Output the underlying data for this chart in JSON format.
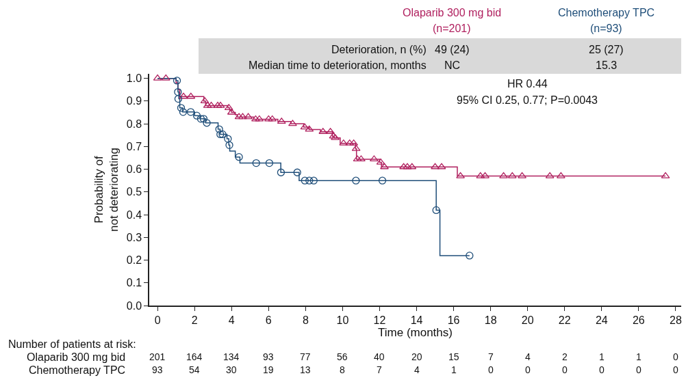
{
  "chart_data": {
    "type": "step",
    "xlabel": "Time (months)",
    "ylabel": "Probability of\nnot deteriorating",
    "xlim": [
      -0.45,
      28.3
    ],
    "ylim": [
      0,
      1.02
    ],
    "xticks": [
      0,
      2,
      4,
      6,
      8,
      10,
      12,
      14,
      16,
      18,
      20,
      22,
      24,
      26,
      28
    ],
    "yticks": [
      {
        "value": 0,
        "label": "0.0"
      },
      0.1,
      0.2,
      0.3,
      0.4,
      0.5,
      0.6,
      0.7,
      0.8,
      0.9,
      {
        "value": 1,
        "label": "1.0"
      }
    ],
    "grid": false,
    "legend": false,
    "series": [
      {
        "name": "Olaparib 300 mg bid",
        "color": "#b0215f",
        "marker": "none",
        "x": [
          0,
          1.0,
          1.1,
          1.2,
          2.5,
          2.6,
          3.8,
          3.9,
          4.0,
          4.2,
          4.3,
          5.2,
          6.5,
          7.2,
          7.9,
          8.2,
          8.8,
          9.45,
          9.55,
          9.87,
          10.7,
          10.75,
          12.0,
          12.1,
          16.2,
          27.45
        ],
        "values": [
          1.0,
          0.98,
          0.95,
          0.92,
          0.9,
          0.88,
          0.87,
          0.86,
          0.85,
          0.84,
          0.83,
          0.82,
          0.81,
          0.8,
          0.785,
          0.775,
          0.765,
          0.745,
          0.738,
          0.714,
          0.69,
          0.644,
          0.63,
          0.61,
          0.57,
          0.57
        ]
      },
      {
        "name": "Chemotherapy TPC",
        "color": "#1f4e79",
        "marker": "none",
        "x": [
          0,
          1.0,
          1.1,
          1.15,
          1.2,
          1.35,
          2.0,
          2.3,
          2.6,
          3.27,
          3.38,
          3.75,
          3.85,
          3.9,
          4.2,
          4.45,
          6.66,
          7.65,
          15.06,
          15.26,
          16.86
        ],
        "values": [
          1.0,
          0.99,
          0.94,
          0.91,
          0.87,
          0.852,
          0.836,
          0.822,
          0.804,
          0.776,
          0.754,
          0.734,
          0.706,
          0.68,
          0.654,
          0.627,
          0.586,
          0.55,
          0.42,
          0.22,
          0.22
        ]
      },
      {
        "type": "scatter",
        "color": "#b0215f",
        "marker": "triangle",
        "x": [
          0,
          0.45,
          1.4,
          1.8,
          2.55,
          2.7,
          2.9,
          3.25,
          3.4,
          3.85,
          4.0,
          4.4,
          4.6,
          4.9,
          5.3,
          5.5,
          6.0,
          6.2,
          6.7,
          7.3,
          7.95,
          8.2,
          8.94,
          9.34,
          9.5,
          9.6,
          10.05,
          10.38,
          10.6,
          10.73,
          10.8,
          11.0,
          11.7,
          12.06,
          12.26,
          13.3,
          13.5,
          13.75,
          15.0,
          15.35,
          16.37,
          17.45,
          17.7,
          18.7,
          19.17,
          19.7,
          21.2,
          21.8,
          27.45
        ],
        "values": [
          1,
          1,
          0.92,
          0.92,
          0.9,
          0.88,
          0.88,
          0.88,
          0.88,
          0.87,
          0.85,
          0.83,
          0.83,
          0.83,
          0.82,
          0.82,
          0.82,
          0.82,
          0.81,
          0.8,
          0.785,
          0.775,
          0.765,
          0.765,
          0.745,
          0.738,
          0.714,
          0.714,
          0.714,
          0.69,
          0.644,
          0.644,
          0.644,
          0.63,
          0.61,
          0.61,
          0.61,
          0.61,
          0.61,
          0.61,
          0.57,
          0.57,
          0.57,
          0.57,
          0.57,
          0.57,
          0.57,
          0.57,
          0.57
        ]
      },
      {
        "type": "scatter",
        "color": "#1f4e79",
        "marker": "circle",
        "x": [
          1.05,
          1.1,
          1.12,
          1.27,
          1.38,
          1.79,
          2.12,
          2.34,
          2.49,
          2.66,
          3.33,
          3.39,
          3.51,
          3.8,
          3.88,
          4.4,
          5.33,
          6.04,
          6.67,
          7.55,
          7.96,
          8.2,
          8.44,
          10.72,
          12.15,
          15.06,
          16.86
        ],
        "values": [
          0.99,
          0.94,
          0.91,
          0.87,
          0.852,
          0.852,
          0.836,
          0.822,
          0.822,
          0.804,
          0.776,
          0.754,
          0.754,
          0.734,
          0.706,
          0.654,
          0.627,
          0.627,
          0.586,
          0.586,
          0.55,
          0.55,
          0.55,
          0.55,
          0.55,
          0.42,
          0.22
        ]
      }
    ],
    "annotations": [
      "Deterioration, n (%)",
      "49 (24)",
      "25 (27)",
      "Median time to deterioration, months",
      "NC",
      "15.3",
      "(n=201)",
      "(n=93)",
      "HR 0.44",
      "95% CI 0.25, 0.77; P=0.0043",
      "Number of patients at risk:",
      "Olaparib 300 mg bid",
      "Chemotherapy TPC",
      "201",
      "164",
      "134",
      "93",
      "77",
      "56",
      "40",
      "20",
      "15",
      "7",
      "4",
      "2",
      "1",
      "1",
      "0",
      "93",
      "54",
      "30",
      "19",
      "13",
      "8",
      "7",
      "4",
      "1",
      "0",
      "0",
      "0",
      "0",
      "0",
      "0"
    ]
  }
}
